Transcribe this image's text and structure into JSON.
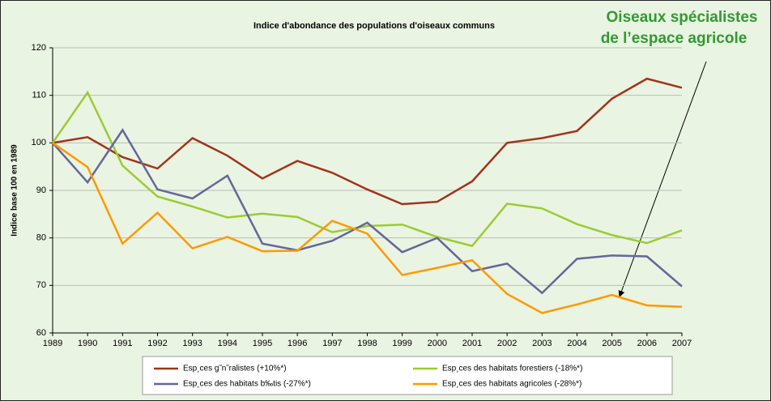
{
  "chart_data": {
    "type": "line",
    "title": "Indice d'abondance des populations d'oiseaux communs",
    "y_label": "Indice base 100 en 1989",
    "annotation": [
      "Oiseaux spécialistes",
      "de l’espace agricole"
    ],
    "x": [
      1989,
      1990,
      1991,
      1992,
      1993,
      1994,
      1995,
      1996,
      1997,
      1998,
      1999,
      2000,
      2001,
      2002,
      2003,
      2004,
      2005,
      2006,
      2007
    ],
    "xlim": [
      1989,
      2007
    ],
    "xticks": [
      1989,
      1990,
      1991,
      1992,
      1993,
      1994,
      1995,
      1996,
      1997,
      1998,
      1999,
      2000,
      2001,
      2002,
      2003,
      2004,
      2005,
      2006,
      2007
    ],
    "ylim": [
      60,
      120
    ],
    "yticks": [
      60,
      70,
      80,
      90,
      100,
      110,
      120
    ],
    "grid": true,
    "series": [
      {
        "name": "Esp¸ces g˜n˜ralistes (+10%*)",
        "color": "#a0341a",
        "values": [
          100,
          101.2,
          97,
          94.6,
          101,
          97.3,
          92.5,
          96.2,
          93.7,
          90.2,
          87.1,
          87.6,
          91.9,
          100,
          101,
          102.5,
          109.3,
          113.5,
          111.6
        ]
      },
      {
        "name": "Esp¸ces des habitats forestiers (-18%*)",
        "color": "#99cc33",
        "values": [
          100,
          110.6,
          95.2,
          88.7,
          86.6,
          84.3,
          85.1,
          84.4,
          81.2,
          82.5,
          82.8,
          80.2,
          78.3,
          87.2,
          86.2,
          82.9,
          80.6,
          78.9,
          81.6
        ]
      },
      {
        "name": "Esp¸ces des habitats b‰tis (-27%*)",
        "color": "#666699",
        "values": [
          100,
          91.7,
          102.7,
          90.2,
          88.3,
          93.1,
          78.8,
          77.4,
          79.4,
          83.2,
          77,
          80,
          73,
          74.6,
          68.4,
          75.6,
          76.3,
          76.1,
          69.8
        ]
      },
      {
        "name": "Esp¸ces des habitats agricoles (-28%*)",
        "color": "#ff9900",
        "values": [
          100,
          94.9,
          78.8,
          85.3,
          77.8,
          80.2,
          77.2,
          77.3,
          83.6,
          80.9,
          72.2,
          73.7,
          75.3,
          68.2,
          64.2,
          66,
          68,
          65.8,
          65.5
        ]
      }
    ]
  }
}
